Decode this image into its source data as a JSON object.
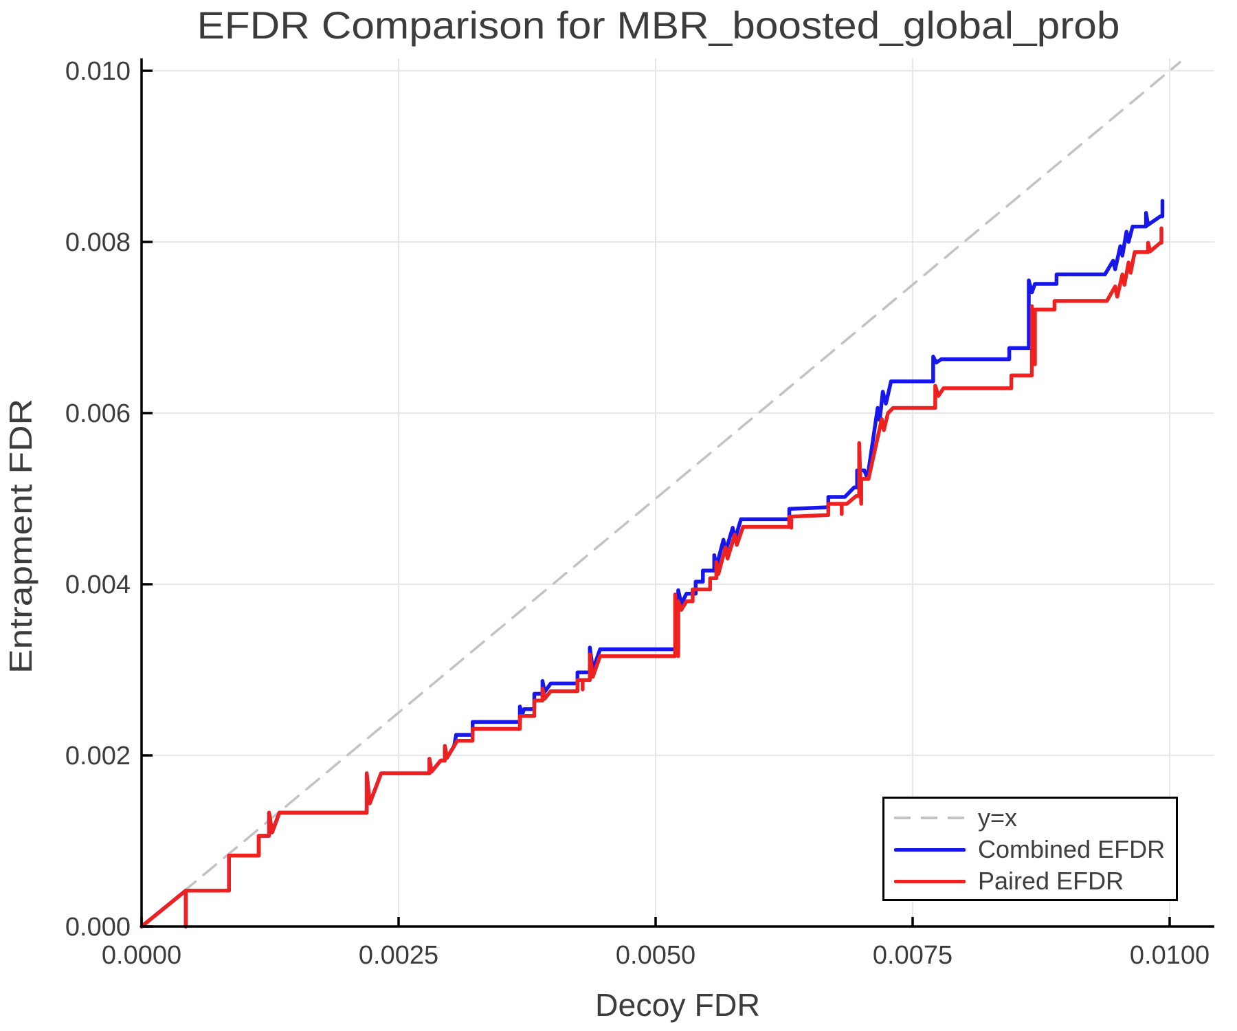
{
  "title": "EFDR Comparison for MBR_boosted_global_prob",
  "axes": {
    "xlabel": "Decoy FDR",
    "ylabel": "Entrapment FDR"
  },
  "legend": {
    "position": "lower right",
    "items": [
      {
        "label": "y=x",
        "color": "#c3c3c3",
        "style": "dashed"
      },
      {
        "label": "Combined EFDR",
        "color": "#1717ec",
        "style": "solid"
      },
      {
        "label": "Paired EFDR",
        "color": "#ee2121",
        "style": "solid"
      }
    ]
  },
  "chart_data": {
    "type": "line",
    "title": "EFDR Comparison for MBR_boosted_global_prob",
    "xlabel": "Decoy FDR",
    "ylabel": "Entrapment FDR",
    "xlim": [
      0,
      0.01043
    ],
    "ylim": [
      0,
      0.01015
    ],
    "grid": true,
    "legend_position": "lower right",
    "xticks": {
      "values": [
        0.0,
        0.0025,
        0.005,
        0.0075,
        0.01
      ],
      "labels": [
        "0.0000",
        "0.0025",
        "0.0050",
        "0.0075",
        "0.0100"
      ]
    },
    "yticks": {
      "values": [
        0.0,
        0.002,
        0.004,
        0.006,
        0.008,
        0.01
      ],
      "labels": [
        "0.000",
        "0.002",
        "0.004",
        "0.006",
        "0.008",
        "0.010"
      ]
    },
    "series": [
      {
        "name": "y=x",
        "style": "dashed",
        "color": "#c3c3c3",
        "width": 3.5,
        "points": [
          [
            0,
            0
          ],
          [
            0.0101,
            0.0101
          ]
        ]
      },
      {
        "name": "Combined EFDR",
        "style": "solid",
        "color": "#1717ec",
        "width": 5.5,
        "points": [
          [
            0,
            0
          ],
          [
            0.00043,
            0.00042
          ],
          [
            0.00043,
            0
          ],
          [
            0.00043,
            0.00042
          ],
          [
            0.00085,
            0.00042
          ],
          [
            0.00085,
            0.00083
          ],
          [
            0.00114,
            0.00083
          ],
          [
            0.00114,
            0.00106
          ],
          [
            0.00124,
            0.00106
          ],
          [
            0.00124,
            0.00133
          ],
          [
            0.00127,
            0.0011
          ],
          [
            0.00134,
            0.00133
          ],
          [
            0.00219,
            0.00133
          ],
          [
            0.00219,
            0.00179
          ],
          [
            0.00222,
            0.00144
          ],
          [
            0.00233,
            0.00179
          ],
          [
            0.0028,
            0.00179
          ],
          [
            0.0028,
            0.00196
          ],
          [
            0.00282,
            0.00181
          ],
          [
            0.00291,
            0.00194
          ],
          [
            0.00295,
            0.00194
          ],
          [
            0.00295,
            0.00211
          ],
          [
            0.00297,
            0.00197
          ],
          [
            0.00304,
            0.00211
          ],
          [
            0.00306,
            0.00224
          ],
          [
            0.00322,
            0.00224
          ],
          [
            0.00322,
            0.00239
          ],
          [
            0.00368,
            0.00239
          ],
          [
            0.00368,
            0.00257
          ],
          [
            0.0037,
            0.00247
          ],
          [
            0.00372,
            0.00254
          ],
          [
            0.00382,
            0.00254
          ],
          [
            0.00382,
            0.00272
          ],
          [
            0.0039,
            0.00272
          ],
          [
            0.0039,
            0.00287
          ],
          [
            0.00392,
            0.00274
          ],
          [
            0.00398,
            0.00284
          ],
          [
            0.00424,
            0.00284
          ],
          [
            0.00424,
            0.00297
          ],
          [
            0.00436,
            0.00297
          ],
          [
            0.00436,
            0.00326
          ],
          [
            0.00439,
            0.003
          ],
          [
            0.00446,
            0.00324
          ],
          [
            0.00522,
            0.00324
          ],
          [
            0.00522,
            0.00393
          ],
          [
            0.00525,
            0.00377
          ],
          [
            0.0053,
            0.00389
          ],
          [
            0.00539,
            0.00389
          ],
          [
            0.00539,
            0.00403
          ],
          [
            0.00546,
            0.00403
          ],
          [
            0.00546,
            0.00416
          ],
          [
            0.00557,
            0.00416
          ],
          [
            0.00557,
            0.00434
          ],
          [
            0.00559,
            0.0042
          ],
          [
            0.00566,
            0.00452
          ],
          [
            0.00568,
            0.00438
          ],
          [
            0.00575,
            0.00466
          ],
          [
            0.00577,
            0.00452
          ],
          [
            0.00583,
            0.00476
          ],
          [
            0.0063,
            0.00476
          ],
          [
            0.0063,
            0.00488
          ],
          [
            0.00668,
            0.0049
          ],
          [
            0.00668,
            0.00502
          ],
          [
            0.00684,
            0.00502
          ],
          [
            0.00693,
            0.00513
          ],
          [
            0.00696,
            0.00513
          ],
          [
            0.00696,
            0.00533
          ],
          [
            0.00703,
            0.00533
          ],
          [
            0.00706,
            0.00524
          ],
          [
            0.00716,
            0.00606
          ],
          [
            0.00718,
            0.00592
          ],
          [
            0.00721,
            0.00625
          ],
          [
            0.00724,
            0.00611
          ],
          [
            0.00729,
            0.00637
          ],
          [
            0.0077,
            0.00637
          ],
          [
            0.0077,
            0.00666
          ],
          [
            0.00773,
            0.00659
          ],
          [
            0.00778,
            0.00663
          ],
          [
            0.00844,
            0.00663
          ],
          [
            0.00844,
            0.00676
          ],
          [
            0.00863,
            0.00676
          ],
          [
            0.00863,
            0.00755
          ],
          [
            0.00866,
            0.00741
          ],
          [
            0.00869,
            0.00751
          ],
          [
            0.0089,
            0.00751
          ],
          [
            0.0089,
            0.00762
          ],
          [
            0.00937,
            0.00762
          ],
          [
            0.00945,
            0.00778
          ],
          [
            0.00947,
            0.00768
          ],
          [
            0.00952,
            0.00795
          ],
          [
            0.00954,
            0.00784
          ],
          [
            0.00958,
            0.00812
          ],
          [
            0.0096,
            0.008
          ],
          [
            0.00964,
            0.00818
          ],
          [
            0.00977,
            0.00818
          ],
          [
            0.00977,
            0.00834
          ],
          [
            0.00979,
            0.0082
          ],
          [
            0.00991,
            0.0083
          ],
          [
            0.00993,
            0.0083
          ],
          [
            0.00993,
            0.00848
          ]
        ]
      },
      {
        "name": "Paired EFDR",
        "style": "solid",
        "color": "#ee2121",
        "width": 5.5,
        "points": [
          [
            0,
            0
          ],
          [
            0.00043,
            0.00042
          ],
          [
            0.00043,
            0
          ],
          [
            0.00043,
            0.00042
          ],
          [
            0.00085,
            0.00042
          ],
          [
            0.00085,
            0.00083
          ],
          [
            0.00114,
            0.00083
          ],
          [
            0.00114,
            0.00106
          ],
          [
            0.00124,
            0.00106
          ],
          [
            0.00124,
            0.00133
          ],
          [
            0.00127,
            0.0011
          ],
          [
            0.00134,
            0.00133
          ],
          [
            0.00219,
            0.00133
          ],
          [
            0.00219,
            0.00179
          ],
          [
            0.00222,
            0.00144
          ],
          [
            0.00233,
            0.00179
          ],
          [
            0.0028,
            0.00179
          ],
          [
            0.0028,
            0.00196
          ],
          [
            0.00282,
            0.00181
          ],
          [
            0.00291,
            0.00194
          ],
          [
            0.00295,
            0.00194
          ],
          [
            0.00295,
            0.00211
          ],
          [
            0.00297,
            0.00197
          ],
          [
            0.00304,
            0.00211
          ],
          [
            0.00307,
            0.00217
          ],
          [
            0.00322,
            0.00217
          ],
          [
            0.00322,
            0.00231
          ],
          [
            0.00368,
            0.00231
          ],
          [
            0.00368,
            0.00246
          ],
          [
            0.00382,
            0.00246
          ],
          [
            0.00382,
            0.00264
          ],
          [
            0.0039,
            0.00264
          ],
          [
            0.0039,
            0.00278
          ],
          [
            0.00392,
            0.00266
          ],
          [
            0.00398,
            0.00275
          ],
          [
            0.00424,
            0.00275
          ],
          [
            0.00424,
            0.00288
          ],
          [
            0.00429,
            0.00288
          ],
          [
            0.00429,
            0.00277
          ],
          [
            0.00429,
            0.00288
          ],
          [
            0.00436,
            0.00288
          ],
          [
            0.00436,
            0.00318
          ],
          [
            0.00439,
            0.00292
          ],
          [
            0.00446,
            0.00316
          ],
          [
            0.00519,
            0.00316
          ],
          [
            0.00519,
            0.00388
          ],
          [
            0.00522,
            0.00316
          ],
          [
            0.00522,
            0.0038
          ],
          [
            0.00525,
            0.0037
          ],
          [
            0.0053,
            0.0038
          ],
          [
            0.00536,
            0.0038
          ],
          [
            0.00536,
            0.00394
          ],
          [
            0.00553,
            0.00394
          ],
          [
            0.00553,
            0.00407
          ],
          [
            0.00559,
            0.00407
          ],
          [
            0.00559,
            0.00426
          ],
          [
            0.00561,
            0.00412
          ],
          [
            0.00568,
            0.00443
          ],
          [
            0.0057,
            0.0043
          ],
          [
            0.00577,
            0.00458
          ],
          [
            0.00579,
            0.00446
          ],
          [
            0.00585,
            0.00467
          ],
          [
            0.0063,
            0.00467
          ],
          [
            0.0063,
            0.00479
          ],
          [
            0.00632,
            0.00466
          ],
          [
            0.00632,
            0.00479
          ],
          [
            0.00668,
            0.00481
          ],
          [
            0.00668,
            0.00494
          ],
          [
            0.00681,
            0.00494
          ],
          [
            0.00681,
            0.00482
          ],
          [
            0.00681,
            0.00494
          ],
          [
            0.00686,
            0.00494
          ],
          [
            0.00695,
            0.00503
          ],
          [
            0.00698,
            0.00503
          ],
          [
            0.00698,
            0.00565
          ],
          [
            0.007,
            0.00494
          ],
          [
            0.007,
            0.00523
          ],
          [
            0.00707,
            0.00523
          ],
          [
            0.0072,
            0.00593
          ],
          [
            0.00722,
            0.0058
          ],
          [
            0.00726,
            0.006
          ],
          [
            0.00731,
            0.00606
          ],
          [
            0.00772,
            0.00606
          ],
          [
            0.00772,
            0.00632
          ],
          [
            0.00775,
            0.0062
          ],
          [
            0.0078,
            0.00629
          ],
          [
            0.00846,
            0.00629
          ],
          [
            0.00846,
            0.00644
          ],
          [
            0.00866,
            0.00644
          ],
          [
            0.00866,
            0.00725
          ],
          [
            0.00869,
            0.00657
          ],
          [
            0.00869,
            0.00721
          ],
          [
            0.00888,
            0.00721
          ],
          [
            0.00888,
            0.00731
          ],
          [
            0.00939,
            0.00731
          ],
          [
            0.00947,
            0.00748
          ],
          [
            0.00949,
            0.00736
          ],
          [
            0.00954,
            0.00762
          ],
          [
            0.00956,
            0.0075
          ],
          [
            0.0096,
            0.00776
          ],
          [
            0.00962,
            0.00764
          ],
          [
            0.00966,
            0.00788
          ],
          [
            0.00979,
            0.00788
          ],
          [
            0.00979,
            0.00799
          ],
          [
            0.00981,
            0.00789
          ],
          [
            0.00991,
            0.00799
          ],
          [
            0.00992,
            0.00799
          ],
          [
            0.00992,
            0.00816
          ]
        ]
      }
    ]
  }
}
